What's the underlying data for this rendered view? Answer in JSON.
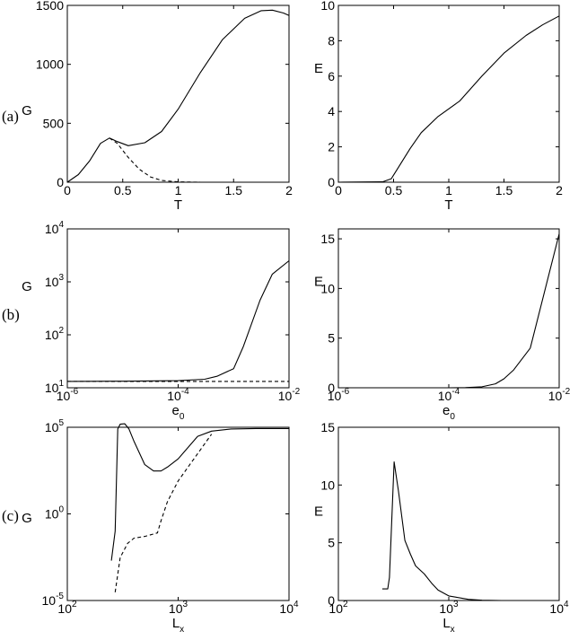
{
  "row_labels": [
    "(a)",
    "(b)",
    "(c)"
  ],
  "chart_data": [
    {
      "type": "line",
      "panel": "a-left",
      "xlabel": "T",
      "ylabel": "G",
      "xlim": [
        0,
        2
      ],
      "ylim": [
        0,
        1500
      ],
      "xticks": [
        0,
        0.5,
        1,
        1.5,
        2
      ],
      "xtick_labels": [
        "0",
        "0.5",
        "1",
        "1.5",
        "2"
      ],
      "yticks": [
        0,
        500,
        1000,
        1500
      ],
      "ytick_labels": [
        "0",
        "500",
        "1000",
        "1500"
      ],
      "series": [
        {
          "line_style": "solid",
          "x": [
            0,
            0.1,
            0.2,
            0.3,
            0.38,
            0.45,
            0.55,
            0.7,
            0.85,
            1.0,
            1.2,
            1.4,
            1.6,
            1.75,
            1.85,
            1.95,
            2.0
          ],
          "y": [
            0,
            65,
            180,
            330,
            375,
            345,
            310,
            335,
            430,
            620,
            930,
            1210,
            1390,
            1455,
            1460,
            1435,
            1415
          ]
        },
        {
          "line_style": "dashed",
          "x": [
            0.38,
            0.45,
            0.55,
            0.65,
            0.75,
            0.85,
            1.0,
            1.2,
            2.0
          ],
          "y": [
            375,
            330,
            210,
            110,
            45,
            15,
            3,
            0,
            0
          ]
        }
      ]
    },
    {
      "type": "line",
      "panel": "a-right",
      "xlabel": "T",
      "ylabel": "E",
      "xlim": [
        0,
        2
      ],
      "ylim": [
        0,
        10
      ],
      "xticks": [
        0,
        0.5,
        1,
        1.5,
        2
      ],
      "xtick_labels": [
        "0",
        "0.5",
        "1",
        "1.5",
        "2"
      ],
      "yticks": [
        0,
        2,
        4,
        6,
        8,
        10
      ],
      "ytick_labels": [
        "0",
        "2",
        "4",
        "6",
        "8",
        "10"
      ],
      "series": [
        {
          "line_style": "solid",
          "x": [
            0,
            0.4,
            0.48,
            0.55,
            0.65,
            0.75,
            0.9,
            1.1,
            1.3,
            1.5,
            1.7,
            1.85,
            2.0
          ],
          "y": [
            0,
            0.02,
            0.2,
            0.9,
            1.9,
            2.8,
            3.7,
            4.6,
            6.0,
            7.3,
            8.3,
            8.9,
            9.4
          ]
        }
      ]
    },
    {
      "type": "line",
      "panel": "b-left",
      "xlabel": "e0",
      "ylabel": "G",
      "xscale": "log",
      "yscale": "log",
      "xlim": [
        1e-06,
        0.01
      ],
      "ylim": [
        10,
        10000
      ],
      "xtick_exps": [
        "-6",
        "-4",
        "-2"
      ],
      "ytick_exps": [
        "1",
        "2",
        "3",
        "4"
      ],
      "series": [
        {
          "line_style": "solid",
          "x": [
            1e-06,
            1e-05,
            0.0001,
            0.0003,
            0.0005,
            0.001,
            0.0015,
            0.003,
            0.005,
            0.01
          ],
          "y": [
            13.2,
            13.3,
            13.6,
            14.5,
            16.5,
            23,
            60,
            450,
            1400,
            2500
          ]
        },
        {
          "line_style": "dashed",
          "x": [
            1e-06,
            0.01
          ],
          "y": [
            13.2,
            13.2
          ]
        }
      ]
    },
    {
      "type": "line",
      "panel": "b-right",
      "xlabel": "e0",
      "ylabel": "E",
      "xscale": "log",
      "xlim": [
        1e-06,
        0.01
      ],
      "ylim": [
        0,
        16
      ],
      "xtick_exps": [
        "-6",
        "-4",
        "-2"
      ],
      "yticks": [
        0,
        5,
        10,
        15
      ],
      "ytick_labels": [
        "0",
        "5",
        "10",
        "15"
      ],
      "series": [
        {
          "line_style": "solid",
          "x": [
            1e-06,
            0.0001,
            0.0002,
            0.0004,
            0.0007,
            0.001,
            0.0015,
            0.003,
            0.01
          ],
          "y": [
            0,
            0,
            0.02,
            0.1,
            0.4,
            0.9,
            1.8,
            4.0,
            15.5
          ]
        }
      ]
    },
    {
      "type": "line",
      "panel": "c-left",
      "xlabel": "Lx",
      "ylabel": "G",
      "xscale": "log",
      "yscale": "log",
      "xlim": [
        100,
        10000
      ],
      "ylim": [
        1e-05,
        100000.0
      ],
      "xtick_exps": [
        "2",
        "3",
        "4"
      ],
      "ytick_exps": [
        "-5",
        "0",
        "5"
      ],
      "series": [
        {
          "line_style": "solid",
          "x": [
            250,
            270,
            285,
            300,
            330,
            360,
            400,
            500,
            600,
            700,
            800,
            1000,
            1500,
            2000,
            3000,
            5000,
            10000
          ],
          "y": [
            0.002,
            0.1,
            80000,
            150000,
            160000,
            80000,
            15000,
            700,
            300,
            300,
            500,
            1500,
            30000,
            60000,
            80000,
            85000,
            85000
          ]
        },
        {
          "line_style": "dashed",
          "x": [
            270,
            300,
            350,
            400,
            500,
            650,
            700,
            800,
            1000,
            1500,
            2000
          ],
          "y": 3e-05
        }
      ]
    },
    {
      "type": "line",
      "panel": "c-right",
      "xlabel": "Lx",
      "ylabel": "E",
      "xscale": "log",
      "xlim": [
        100,
        10000
      ],
      "ylim": [
        0,
        15
      ],
      "xtick_exps": [
        "2",
        "3",
        "4"
      ],
      "yticks": [
        0,
        5,
        10,
        15
      ],
      "ytick_labels": [
        "0",
        "5",
        "10",
        "15"
      ],
      "series": [
        {
          "line_style": "solid",
          "x": [
            250,
            280,
            290,
            320,
            350,
            400,
            450,
            500,
            600,
            700,
            800,
            1000,
            1500,
            2000,
            3000
          ],
          "y": [
            1.0,
            1.0,
            2.0,
            12.0,
            9.5,
            5.2,
            4.0,
            3.0,
            2.3,
            1.5,
            0.9,
            0.4,
            0.1,
            0.02,
            0
          ]
        }
      ]
    }
  ]
}
